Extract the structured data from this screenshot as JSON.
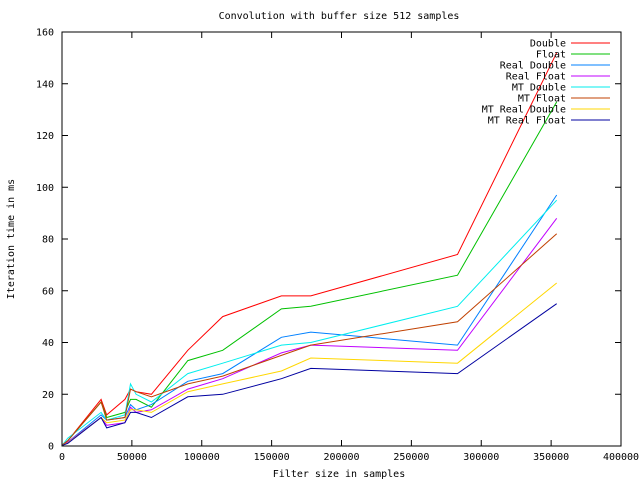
{
  "chart_data": {
    "type": "line",
    "title": "Convolution with buffer size 512 samples",
    "xlabel": "Filter size in samples",
    "ylabel": "Iteration time in ms",
    "xlim": [
      0,
      400000
    ],
    "ylim": [
      0,
      160
    ],
    "xticks": [
      0,
      50000,
      100000,
      150000,
      200000,
      250000,
      300000,
      350000,
      400000
    ],
    "yticks": [
      0,
      20,
      40,
      60,
      80,
      100,
      120,
      140,
      160
    ],
    "grid": false,
    "legend": "top-right",
    "x": [
      512,
      4096,
      28000,
      32000,
      45000,
      49000,
      53000,
      64000,
      90000,
      115000,
      157000,
      178000,
      283000,
      354000
    ],
    "series": [
      {
        "name": "Double",
        "color": "#ff0000",
        "values": [
          0.5,
          2,
          18,
          12,
          18,
          22,
          21,
          20,
          37,
          50,
          58,
          58,
          74,
          152
        ]
      },
      {
        "name": "Float",
        "color": "#00c000",
        "values": [
          0.5,
          2,
          17,
          11,
          13,
          18,
          18,
          15,
          33,
          37,
          53,
          54,
          66,
          133
        ]
      },
      {
        "name": "Real Double",
        "color": "#0080ff",
        "values": [
          0.4,
          1.5,
          12,
          10,
          11,
          16,
          14,
          16,
          25,
          28,
          42,
          44,
          39,
          97
        ]
      },
      {
        "name": "Real Float",
        "color": "#c000ff",
        "values": [
          0.4,
          1.5,
          11,
          8,
          9,
          15,
          13,
          14,
          22,
          26,
          36,
          39,
          37,
          88
        ]
      },
      {
        "name": "MT Double",
        "color": "#00eeee",
        "values": [
          0.5,
          3,
          13,
          10,
          12,
          24,
          20,
          17,
          28,
          32,
          39,
          40,
          54,
          95
        ]
      },
      {
        "name": "MT Float",
        "color": "#c04000",
        "values": [
          0.5,
          2,
          17,
          10,
          11,
          22,
          21,
          19,
          24,
          27,
          35,
          39,
          48,
          82
        ]
      },
      {
        "name": "MT Real Double",
        "color": "#ffd700",
        "values": [
          0.3,
          1.2,
          11,
          9,
          10,
          14,
          14,
          13,
          21,
          24,
          29,
          34,
          32,
          63
        ]
      },
      {
        "name": "MT Real Float",
        "color": "#0000a0",
        "values": [
          0.3,
          1,
          11,
          7,
          9,
          13,
          13,
          11,
          19,
          20,
          26,
          30,
          28,
          55
        ]
      }
    ]
  }
}
